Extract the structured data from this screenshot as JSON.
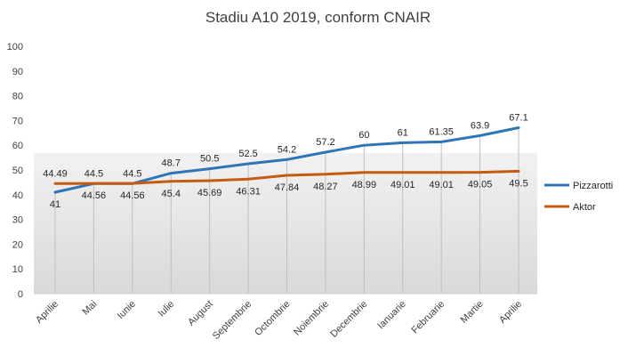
{
  "chart_data": {
    "type": "line",
    "title": "Stadiu A10 2019, conform CNAIR",
    "xlabel": "",
    "ylabel": "",
    "ylim": [
      0,
      100
    ],
    "yticks": [
      0,
      10,
      20,
      30,
      40,
      50,
      60,
      70,
      80,
      90,
      100
    ],
    "grid": false,
    "legend_position": "right",
    "categories": [
      "Aprilie",
      "Mai",
      "Iunie",
      "Iulie",
      "August",
      "Septembrie",
      "Octombrie",
      "Noiembrie",
      "Decembrie",
      "Ianuarie",
      "Februarie",
      "Martie",
      "Aprilie"
    ],
    "series": [
      {
        "name": "Pizzarotti",
        "color": "#2e75b6",
        "values": [
          41,
          44.5,
          44.5,
          48.7,
          50.5,
          52.5,
          54.2,
          57.2,
          60,
          61,
          61.35,
          63.9,
          67.1
        ],
        "labels": [
          "41",
          "44.5",
          "44.5",
          "48.7",
          "50.5",
          "52.5",
          "54.2",
          "57.2",
          "60",
          "61",
          "61.35",
          "63.9",
          "67.1"
        ]
      },
      {
        "name": "Aktor",
        "color": "#c55a11",
        "values": [
          44.49,
          44.56,
          44.56,
          45.4,
          45.69,
          46.31,
          47.84,
          48.27,
          48.99,
          49.01,
          49.01,
          49.05,
          49.5
        ],
        "labels": [
          "44.49",
          "44.56",
          "44.56",
          "45.4",
          "45.69",
          "46.31",
          "47.84",
          "48.27",
          "48.99",
          "49.01",
          "49.01",
          "49.05",
          "49.5"
        ]
      }
    ]
  }
}
